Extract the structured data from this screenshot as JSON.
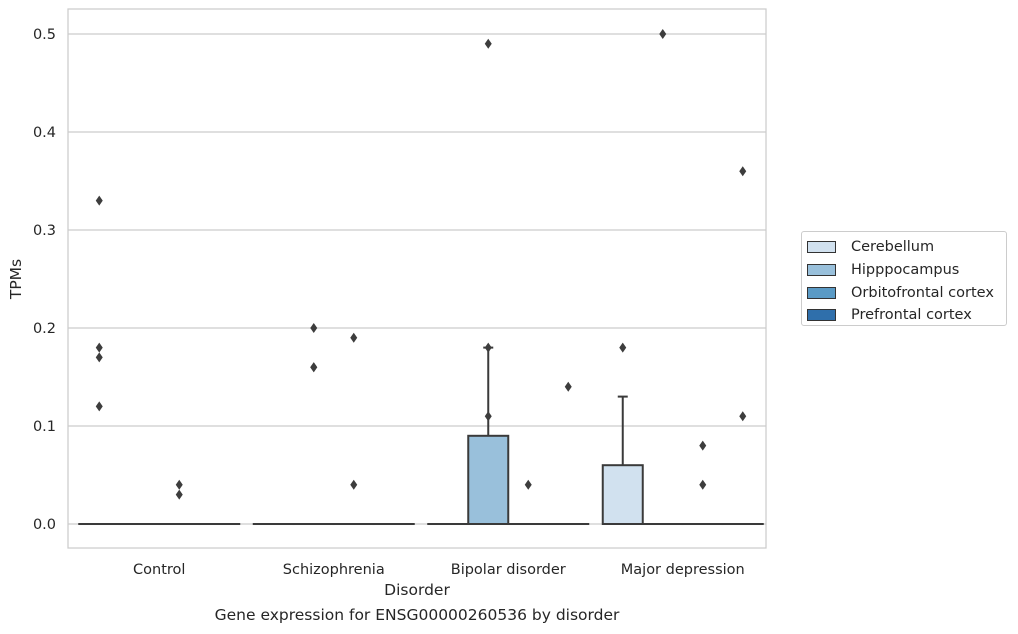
{
  "caption": "Gene expression for ENSG00000260536 by disorder",
  "chart_data": {
    "type": "box",
    "xlabel": "Disorder",
    "ylabel": "TPMs",
    "ylim": [
      -0.025,
      0.525
    ],
    "yticks": [
      0.0,
      0.1,
      0.2,
      0.3,
      0.4,
      0.5
    ],
    "ytick_labels": [
      "0.0",
      "0.1",
      "0.2",
      "0.3",
      "0.4",
      "0.5"
    ],
    "grid": true,
    "legend_position": "right",
    "categories": [
      "Control",
      "Schizophrenia",
      "Bipolar disorder",
      "Major depression"
    ],
    "series": [
      {
        "name": "Cerebellum",
        "color": "#d1e1ef",
        "boxes": [
          {
            "q1": 0,
            "median": 0,
            "q3": 0,
            "whisker_low": 0,
            "whisker_high": 0,
            "outliers": [
              0.33,
              0.18,
              0.17,
              0.12
            ]
          },
          {
            "q1": 0,
            "median": 0,
            "q3": 0,
            "whisker_low": 0,
            "whisker_high": 0,
            "outliers": []
          },
          {
            "q1": 0,
            "median": 0,
            "q3": 0,
            "whisker_low": 0,
            "whisker_high": 0,
            "outliers": []
          },
          {
            "q1": 0,
            "median": 0,
            "q3": 0.06,
            "whisker_low": 0,
            "whisker_high": 0.13,
            "outliers": [
              0.18
            ]
          }
        ]
      },
      {
        "name": "Hipppocampus",
        "color": "#99c0db",
        "boxes": [
          {
            "q1": 0,
            "median": 0,
            "q3": 0,
            "whisker_low": 0,
            "whisker_high": 0,
            "outliers": []
          },
          {
            "q1": 0,
            "median": 0,
            "q3": 0,
            "whisker_low": 0,
            "whisker_high": 0,
            "outliers": [
              0.2,
              0.16,
              0.16
            ]
          },
          {
            "q1": 0,
            "median": 0,
            "q3": 0.09,
            "whisker_low": 0,
            "whisker_high": 0.18,
            "outliers": [
              0.49,
              0.18,
              0.11
            ]
          },
          {
            "q1": 0,
            "median": 0,
            "q3": 0,
            "whisker_low": 0,
            "whisker_high": 0,
            "outliers": [
              0.5
            ]
          }
        ]
      },
      {
        "name": "Orbitofrontal cortex",
        "color": "#5a9ac5",
        "boxes": [
          {
            "q1": 0,
            "median": 0,
            "q3": 0,
            "whisker_low": 0,
            "whisker_high": 0,
            "outliers": [
              0.04,
              0.03
            ]
          },
          {
            "q1": 0,
            "median": 0,
            "q3": 0,
            "whisker_low": 0,
            "whisker_high": 0,
            "outliers": [
              0.19,
              0.04
            ]
          },
          {
            "q1": 0,
            "median": 0,
            "q3": 0,
            "whisker_low": 0,
            "whisker_high": 0,
            "outliers": [
              0.04
            ]
          },
          {
            "q1": 0,
            "median": 0,
            "q3": 0,
            "whisker_low": 0,
            "whisker_high": 0,
            "outliers": [
              0.08,
              0.04
            ]
          }
        ]
      },
      {
        "name": "Prefrontal cortex",
        "color": "#2f6fab",
        "boxes": [
          {
            "q1": 0,
            "median": 0,
            "q3": 0,
            "whisker_low": 0,
            "whisker_high": 0,
            "outliers": []
          },
          {
            "q1": 0,
            "median": 0,
            "q3": 0,
            "whisker_low": 0,
            "whisker_high": 0,
            "outliers": []
          },
          {
            "q1": 0,
            "median": 0,
            "q3": 0,
            "whisker_low": 0,
            "whisker_high": 0,
            "outliers": [
              0.14
            ]
          },
          {
            "q1": 0,
            "median": 0,
            "q3": 0,
            "whisker_low": 0,
            "whisker_high": 0,
            "outliers": [
              0.36,
              0.11
            ]
          }
        ]
      }
    ]
  }
}
